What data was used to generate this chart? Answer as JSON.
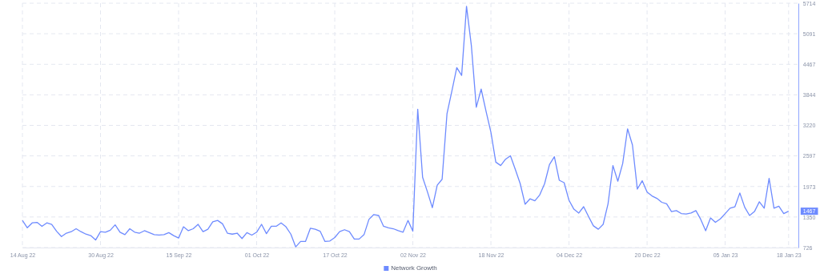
{
  "chart_data": {
    "type": "line",
    "xlim": [
      "2022-08-14",
      "2023-01-20"
    ],
    "ylim": [
      726,
      5714
    ],
    "yticks": [
      726,
      1350,
      1973,
      2597,
      3220,
      3844,
      4467,
      5091,
      5714
    ],
    "xticks": [
      {
        "value": "2022-08-14",
        "label": "14 Aug 22"
      },
      {
        "value": "2022-08-30",
        "label": "30 Aug 22"
      },
      {
        "value": "2022-09-15",
        "label": "15 Sep 22"
      },
      {
        "value": "2022-10-01",
        "label": "01 Oct 22"
      },
      {
        "value": "2022-10-17",
        "label": "17 Oct 22"
      },
      {
        "value": "2022-11-02",
        "label": "02 Nov 22"
      },
      {
        "value": "2022-11-18",
        "label": "18 Nov 22"
      },
      {
        "value": "2022-12-04",
        "label": "04 Dec 22"
      },
      {
        "value": "2022-12-20",
        "label": "20 Dec 22"
      },
      {
        "value": "2023-01-05",
        "label": "05 Jan 23"
      },
      {
        "value": "2023-01-18",
        "label": "18 Jan 23"
      }
    ],
    "grid": true,
    "legend": "bottom",
    "marker": "none",
    "line_style": "solid",
    "annotations": [
      {
        "text": "1467",
        "x": "2023-01-18",
        "y": 1467
      }
    ],
    "x": [
      "2022-08-14",
      "2022-08-15",
      "2022-08-16",
      "2022-08-17",
      "2022-08-18",
      "2022-08-19",
      "2022-08-20",
      "2022-08-21",
      "2022-08-22",
      "2022-08-23",
      "2022-08-24",
      "2022-08-25",
      "2022-08-26",
      "2022-08-27",
      "2022-08-28",
      "2022-08-29",
      "2022-08-30",
      "2022-08-31",
      "2022-09-01",
      "2022-09-02",
      "2022-09-03",
      "2022-09-04",
      "2022-09-05",
      "2022-09-06",
      "2022-09-07",
      "2022-09-08",
      "2022-09-09",
      "2022-09-10",
      "2022-09-11",
      "2022-09-12",
      "2022-09-13",
      "2022-09-14",
      "2022-09-15",
      "2022-09-16",
      "2022-09-17",
      "2022-09-18",
      "2022-09-19",
      "2022-09-20",
      "2022-09-21",
      "2022-09-22",
      "2022-09-23",
      "2022-09-24",
      "2022-09-25",
      "2022-09-26",
      "2022-09-27",
      "2022-09-28",
      "2022-09-29",
      "2022-09-30",
      "2022-10-01",
      "2022-10-02",
      "2022-10-03",
      "2022-10-04",
      "2022-10-05",
      "2022-10-06",
      "2022-10-07",
      "2022-10-08",
      "2022-10-09",
      "2022-10-10",
      "2022-10-11",
      "2022-10-12",
      "2022-10-13",
      "2022-10-14",
      "2022-10-15",
      "2022-10-16",
      "2022-10-17",
      "2022-10-18",
      "2022-10-19",
      "2022-10-20",
      "2022-10-21",
      "2022-10-22",
      "2022-10-23",
      "2022-10-24",
      "2022-10-25",
      "2022-10-26",
      "2022-10-27",
      "2022-10-28",
      "2022-10-29",
      "2022-10-30",
      "2022-10-31",
      "2022-11-01",
      "2022-11-02",
      "2022-11-03",
      "2022-11-04",
      "2022-11-05",
      "2022-11-06",
      "2022-11-07",
      "2022-11-08",
      "2022-11-09",
      "2022-11-10",
      "2022-11-11",
      "2022-11-12",
      "2022-11-13",
      "2022-11-14",
      "2022-11-15",
      "2022-11-16",
      "2022-11-17",
      "2022-11-18",
      "2022-11-19",
      "2022-11-20",
      "2022-11-21",
      "2022-11-22",
      "2022-11-23",
      "2022-11-24",
      "2022-11-25",
      "2022-11-26",
      "2022-11-27",
      "2022-11-28",
      "2022-11-29",
      "2022-11-30",
      "2022-12-01",
      "2022-12-02",
      "2022-12-03",
      "2022-12-04",
      "2022-12-05",
      "2022-12-06",
      "2022-12-07",
      "2022-12-08",
      "2022-12-09",
      "2022-12-10",
      "2022-12-11",
      "2022-12-12",
      "2022-12-13",
      "2022-12-14",
      "2022-12-15",
      "2022-12-16",
      "2022-12-17",
      "2022-12-18",
      "2022-12-19",
      "2022-12-20",
      "2022-12-21",
      "2022-12-22",
      "2022-12-23",
      "2022-12-24",
      "2022-12-25",
      "2022-12-26",
      "2022-12-27",
      "2022-12-28",
      "2022-12-29",
      "2022-12-30",
      "2022-12-31",
      "2023-01-01",
      "2023-01-02",
      "2023-01-03",
      "2023-01-04",
      "2023-01-05",
      "2023-01-06",
      "2023-01-07",
      "2023-01-08",
      "2023-01-09",
      "2023-01-10",
      "2023-01-11",
      "2023-01-12",
      "2023-01-13",
      "2023-01-14",
      "2023-01-15",
      "2023-01-16",
      "2023-01-17",
      "2023-01-18"
    ],
    "series": [
      {
        "name": "Network Growth",
        "color": "#6e8bff",
        "values": [
          1280,
          1130,
          1230,
          1240,
          1160,
          1230,
          1200,
          1060,
          950,
          1020,
          1050,
          1110,
          1050,
          1000,
          970,
          880,
          1050,
          1040,
          1080,
          1190,
          1040,
          990,
          1110,
          1040,
          1020,
          1070,
          1030,
          990,
          980,
          990,
          1030,
          970,
          920,
          1150,
          1070,
          1110,
          1200,
          1050,
          1100,
          1250,
          1280,
          1210,
          1020,
          1000,
          1020,
          910,
          1030,
          980,
          1040,
          1200,
          1010,
          1160,
          1160,
          1230,
          1150,
          1000,
          740,
          850,
          850,
          1120,
          1100,
          1060,
          850,
          860,
          930,
          1050,
          1090,
          1050,
          900,
          900,
          990,
          1300,
          1400,
          1380,
          1160,
          1130,
          1110,
          1070,
          1040,
          1280,
          1060,
          3550,
          2160,
          1860,
          1540,
          2000,
          2120,
          3460,
          3920,
          4400,
          4240,
          5650,
          4840,
          3590,
          3960,
          3510,
          3080,
          2470,
          2400,
          2530,
          2600,
          2320,
          2030,
          1610,
          1720,
          1680,
          1800,
          2030,
          2420,
          2580,
          2100,
          2050,
          1690,
          1510,
          1430,
          1560,
          1360,
          1170,
          1100,
          1200,
          1620,
          2400,
          2080,
          2440,
          3150,
          2820,
          1920,
          2090,
          1860,
          1780,
          1730,
          1650,
          1620,
          1460,
          1480,
          1420,
          1410,
          1430,
          1480,
          1300,
          1070,
          1330,
          1240,
          1310,
          1420,
          1530,
          1560,
          1840,
          1550,
          1380,
          1460,
          1660,
          1530,
          2140,
          1530,
          1570,
          1420,
          1467
        ]
      }
    ]
  }
}
